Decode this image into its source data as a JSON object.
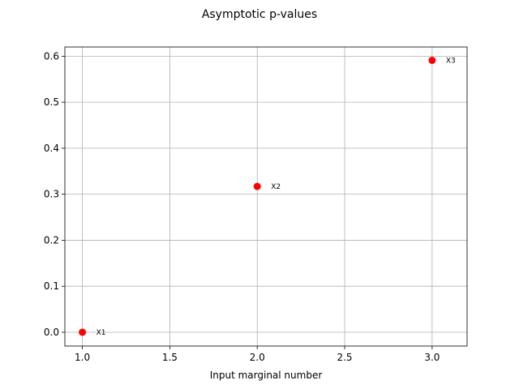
{
  "chart_data": {
    "type": "scatter",
    "title": "Asymptotic p-values",
    "xlabel": "Input marginal number",
    "ylabel": "",
    "xlim": [
      0.9,
      3.2
    ],
    "ylim": [
      -0.03,
      0.62
    ],
    "xticks": [
      1.0,
      1.5,
      2.0,
      2.5,
      3.0
    ],
    "xtick_labels": [
      "1.0",
      "1.5",
      "2.0",
      "2.5",
      "3.0"
    ],
    "yticks": [
      0.0,
      0.1,
      0.2,
      0.3,
      0.4,
      0.5,
      0.6
    ],
    "ytick_labels": [
      "0.0",
      "0.1",
      "0.2",
      "0.3",
      "0.4",
      "0.5",
      "0.6"
    ],
    "grid": true,
    "marker_color": "#ff0000",
    "points": [
      {
        "x": 1,
        "y": 0.0,
        "label": "X1"
      },
      {
        "x": 2,
        "y": 0.317,
        "label": "X2"
      },
      {
        "x": 3,
        "y": 0.591,
        "label": "X3"
      }
    ]
  }
}
